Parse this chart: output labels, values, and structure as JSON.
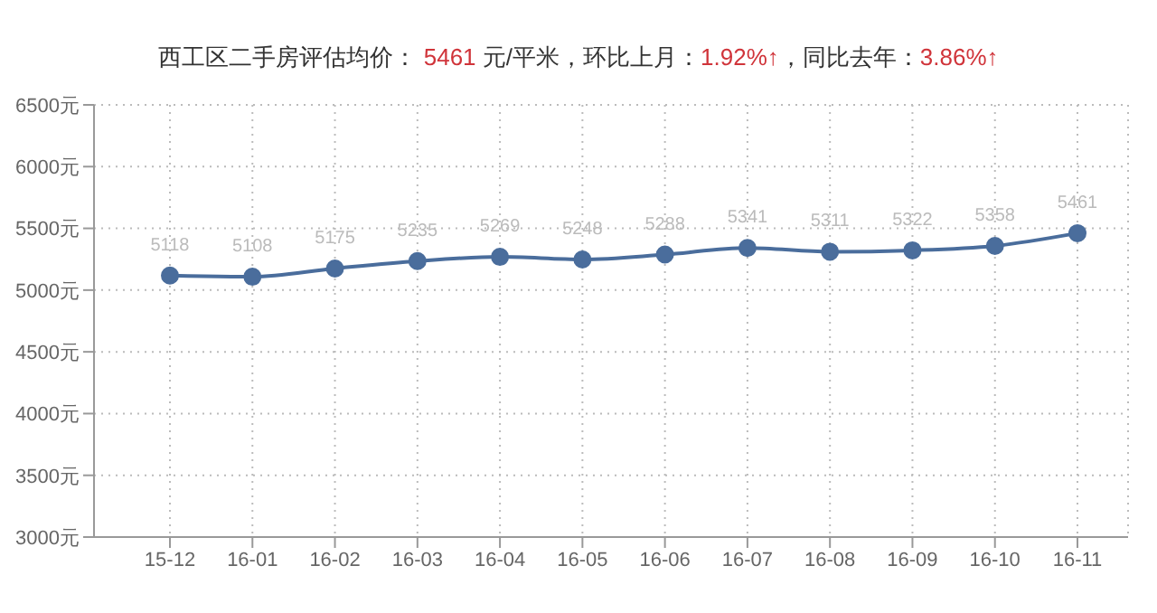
{
  "chart_data": {
    "type": "line",
    "title": "西工区二手房评估均价： 5461 元/平米，环比上月：1.92%↑，同比去年：3.86%↑",
    "categories": [
      "15-12",
      "16-01",
      "16-02",
      "16-03",
      "16-04",
      "16-05",
      "16-06",
      "16-07",
      "16-08",
      "16-09",
      "16-10",
      "16-11"
    ],
    "series": [
      {
        "color": "#4a6d9c",
        "values": [
          5118,
          5108,
          5175,
          5235,
          5269,
          5248,
          5288,
          5341,
          5311,
          5322,
          5358,
          5461
        ]
      }
    ],
    "ylim": [
      3000,
      6500
    ],
    "yticks": [
      {
        "value": 3000,
        "label": "3000元"
      },
      {
        "value": 3500,
        "label": "3500元"
      },
      {
        "value": 4000,
        "label": "4000元"
      },
      {
        "value": 4500,
        "label": "4500元"
      },
      {
        "value": 5000,
        "label": "5000元"
      },
      {
        "value": 5500,
        "label": "5500元"
      },
      {
        "value": 6000,
        "label": "6000元"
      },
      {
        "value": 6500,
        "label": "6500元"
      }
    ],
    "grid": true,
    "marker": "circle",
    "line_style": "solid",
    "data_labels": true
  }
}
